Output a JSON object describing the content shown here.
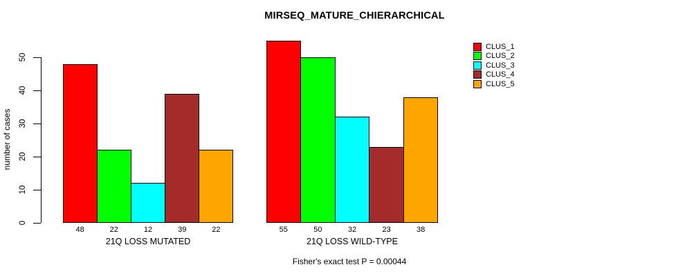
{
  "chart_data": {
    "type": "bar",
    "title": "MIRSEQ_MATURE_CHIERARCHICAL",
    "ylabel": "number of cases",
    "xlabel": "",
    "ylim": [
      0,
      55
    ],
    "yticks": [
      0,
      10,
      20,
      30,
      40,
      50
    ],
    "grid": false,
    "legend_position": "top-right",
    "series": [
      {
        "name": "CLUS_1",
        "color": "#FF0000"
      },
      {
        "name": "CLUS_2",
        "color": "#00FF00"
      },
      {
        "name": "CLUS_3",
        "color": "#00FFFF"
      },
      {
        "name": "CLUS_4",
        "color": "#A52A2A"
      },
      {
        "name": "CLUS_5",
        "color": "#FFA500"
      }
    ],
    "groups": [
      {
        "label": "21Q LOSS MUTATED",
        "values": [
          48,
          22,
          12,
          39,
          22
        ]
      },
      {
        "label": "21Q LOSS WILD-TYPE",
        "values": [
          55,
          50,
          32,
          23,
          38
        ]
      }
    ],
    "annotation": "Fisher's exact test P = 0.00044"
  }
}
